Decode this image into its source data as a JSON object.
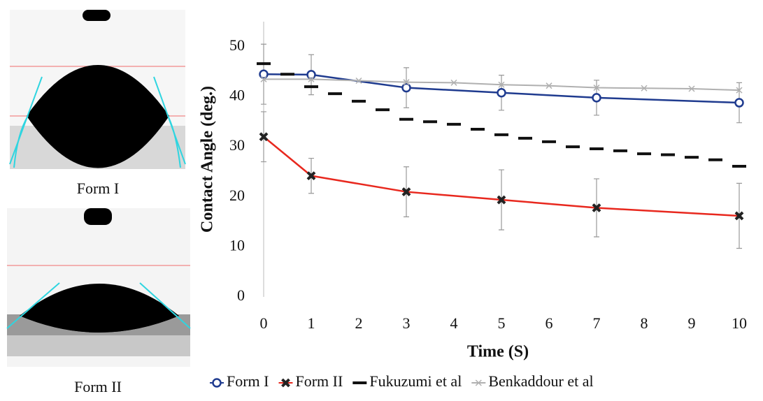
{
  "panels": [
    {
      "caption": "Form I"
    },
    {
      "caption": "Form II"
    }
  ],
  "chart_data": {
    "type": "line",
    "xlabel": "Time (S)",
    "ylabel": "Contact Angle (deg.)",
    "xlim": [
      0,
      10
    ],
    "ylim": [
      0,
      55
    ],
    "xticks": [
      0,
      1,
      2,
      3,
      4,
      5,
      6,
      7,
      8,
      9,
      10
    ],
    "yticks": [
      0,
      10,
      20,
      30,
      40,
      50
    ],
    "series": [
      {
        "name": "Form I",
        "color": "#1f3b8f",
        "marker": "circle",
        "x": [
          0,
          1,
          3,
          5,
          7,
          10
        ],
        "values": [
          44.5,
          44.4,
          41.8,
          40.8,
          39.8,
          38.8
        ],
        "errors": [
          6,
          4,
          4,
          3.5,
          3.5,
          4
        ]
      },
      {
        "name": "Form II",
        "color": "#e8281e",
        "marker": "cross",
        "x": [
          0,
          1,
          3,
          5,
          7,
          10
        ],
        "values": [
          32,
          24.2,
          21,
          19.4,
          17.8,
          16.2
        ],
        "errors": [
          5,
          3.5,
          5,
          6,
          5.8,
          6.5
        ]
      },
      {
        "name": "Fukuzumi et al",
        "color": "#111111",
        "marker": "dash",
        "x": [
          0,
          0.5,
          1,
          1.5,
          2,
          2.5,
          3,
          3.5,
          4,
          4.5,
          5,
          5.5,
          6,
          6.5,
          7,
          7.5,
          8,
          8.5,
          9,
          9.5,
          10
        ],
        "values": [
          46.6,
          44.5,
          42,
          40.6,
          39.1,
          37.4,
          35.5,
          35,
          34.5,
          33.5,
          32.4,
          31.7,
          31,
          30,
          29.6,
          29.2,
          28.6,
          28.4,
          27.9,
          27.4,
          26.1
        ]
      },
      {
        "name": "Benkaddour et al",
        "color": "#b0b0b0",
        "marker": "x",
        "x": [
          0,
          1,
          2,
          3,
          4,
          5,
          6,
          7,
          8,
          9,
          10
        ],
        "values": [
          43.5,
          43.5,
          43.2,
          42.9,
          42.8,
          42.4,
          42.2,
          41.8,
          41.7,
          41.6,
          41.3
        ]
      }
    ]
  }
}
